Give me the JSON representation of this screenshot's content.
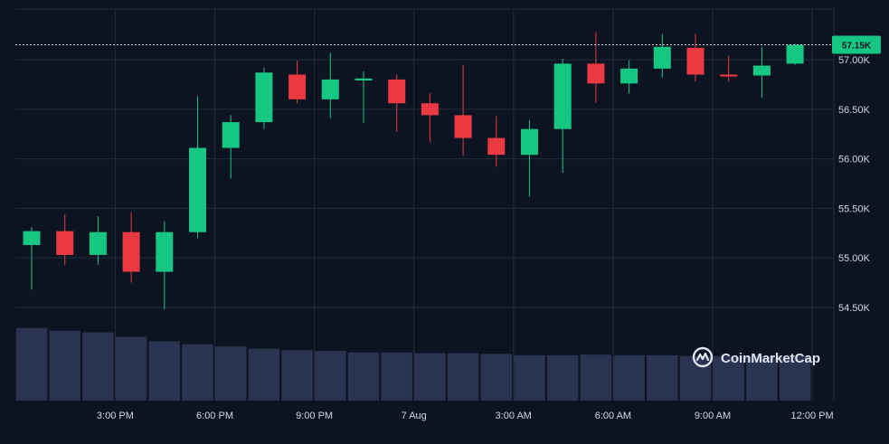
{
  "colors": {
    "background": "#0d1421",
    "grid": "#222b3a",
    "up": "#16c784",
    "down": "#ea3943",
    "volume": "#2a3450",
    "axis_text": "#cfd6e4",
    "price_tag": "#16c784"
  },
  "watermark": {
    "text": "CoinMarketCap",
    "icon": "coinmarketcap-logo-icon"
  },
  "chart_data": {
    "type": "candlestick",
    "title": "",
    "xlabel": "",
    "ylabel": "",
    "ylim": [
      54300,
      57550
    ],
    "y_ticks": [
      54500,
      55000,
      55500,
      56000,
      56500,
      57000
    ],
    "y_tick_labels": [
      "54.50K",
      "55.00K",
      "55.50K",
      "56.00K",
      "56.50K",
      "57.00K"
    ],
    "x_tick_labels": [
      {
        "index": 2,
        "label": "3:00 PM"
      },
      {
        "index": 5,
        "label": "6:00 PM"
      },
      {
        "index": 8,
        "label": "9:00 PM"
      },
      {
        "index": 11,
        "label": "7 Aug"
      },
      {
        "index": 14,
        "label": "3:00 AM"
      },
      {
        "index": 17,
        "label": "6:00 AM"
      },
      {
        "index": 20,
        "label": "9:00 AM"
      },
      {
        "index": 23,
        "label": "12:00 PM"
      }
    ],
    "current_price": {
      "value": 57150,
      "label": "57.15K"
    },
    "grid": true,
    "candles": [
      {
        "open": 55130,
        "close": 55270,
        "high": 55310,
        "low": 54680
      },
      {
        "open": 55270,
        "close": 55030,
        "high": 55440,
        "low": 54930
      },
      {
        "open": 55030,
        "close": 55260,
        "high": 55420,
        "low": 54930
      },
      {
        "open": 55260,
        "close": 54860,
        "high": 55460,
        "low": 54750
      },
      {
        "open": 54860,
        "close": 55260,
        "high": 55370,
        "low": 54480
      },
      {
        "open": 55260,
        "close": 56110,
        "high": 56630,
        "low": 55200
      },
      {
        "open": 56110,
        "close": 56370,
        "high": 56440,
        "low": 55800
      },
      {
        "open": 56370,
        "close": 56870,
        "high": 56920,
        "low": 56300
      },
      {
        "open": 56850,
        "close": 56600,
        "high": 56990,
        "low": 56560
      },
      {
        "open": 56600,
        "close": 56800,
        "high": 57070,
        "low": 56410
      },
      {
        "open": 56790,
        "close": 56810,
        "high": 56880,
        "low": 56360
      },
      {
        "open": 56800,
        "close": 56560,
        "high": 56850,
        "low": 56270
      },
      {
        "open": 56560,
        "close": 56440,
        "high": 56660,
        "low": 56170
      },
      {
        "open": 56440,
        "close": 56210,
        "high": 56950,
        "low": 56030
      },
      {
        "open": 56210,
        "close": 56040,
        "high": 56430,
        "low": 55920
      },
      {
        "open": 56040,
        "close": 56300,
        "high": 56390,
        "low": 55620
      },
      {
        "open": 56300,
        "close": 56960,
        "high": 57010,
        "low": 55860
      },
      {
        "open": 56960,
        "close": 56760,
        "high": 57280,
        "low": 56570
      },
      {
        "open": 56760,
        "close": 56910,
        "high": 56990,
        "low": 56660
      },
      {
        "open": 56910,
        "close": 57130,
        "high": 57260,
        "low": 56820
      },
      {
        "open": 57120,
        "close": 56850,
        "high": 57260,
        "low": 56780
      },
      {
        "open": 56850,
        "close": 56830,
        "high": 57040,
        "low": 56780
      },
      {
        "open": 56840,
        "close": 56940,
        "high": 57130,
        "low": 56620
      },
      {
        "open": 56960,
        "close": 57150,
        "high": 57160,
        "low": 56950
      }
    ],
    "volume": [
      0.98,
      0.94,
      0.92,
      0.86,
      0.8,
      0.76,
      0.73,
      0.7,
      0.68,
      0.67,
      0.65,
      0.65,
      0.64,
      0.64,
      0.63,
      0.61,
      0.61,
      0.62,
      0.61,
      0.61,
      0.6,
      0.6,
      0.6,
      0.6
    ]
  }
}
